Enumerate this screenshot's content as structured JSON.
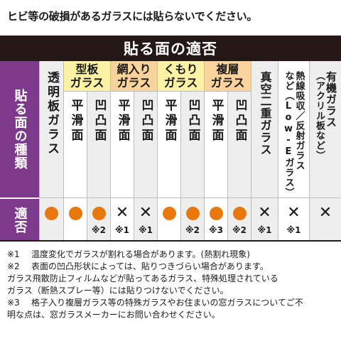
{
  "top_note": "ヒビ等の破損があるガラスには貼らないでください。",
  "table": {
    "title": "貼る面の適否",
    "row_header_types": "貼る面の種類",
    "row_header_suitability": "適否",
    "columns": [
      {
        "group": "",
        "label": "透明板ガラス",
        "mark": "circle",
        "note": ""
      },
      {
        "group": "型板ガラス",
        "label": "平滑面",
        "mark": "circle",
        "note": ""
      },
      {
        "group": "型板ガラス",
        "label": "凹凸面",
        "mark": "circle",
        "note": "※2"
      },
      {
        "group": "網入りガラス",
        "label": "平滑面",
        "mark": "cross",
        "note": "※1"
      },
      {
        "group": "網入りガラス",
        "label": "凹凸面",
        "mark": "cross",
        "note": "※1"
      },
      {
        "group": "くもりガラス",
        "label": "平滑面",
        "mark": "circle",
        "note": ""
      },
      {
        "group": "くもりガラス",
        "label": "凹凸面",
        "mark": "circle",
        "note": "※2"
      },
      {
        "group": "複層ガラス",
        "label": "平滑面",
        "mark": "circle",
        "note": "※3"
      },
      {
        "group": "複層ガラス",
        "label": "凹凸面",
        "mark": "circle",
        "note": "※2"
      },
      {
        "group": "",
        "label": "真空二重ガラス",
        "mark": "cross",
        "note": "※1"
      },
      {
        "group": "",
        "label": "熱線吸収／反射ガラスなど（Low-Eガラス）",
        "mark": "cross",
        "note": "※1"
      },
      {
        "group": "",
        "label": "有機ガラス（アクリル板など）",
        "mark": "cross",
        "note": ""
      }
    ],
    "groups": {
      "g1": "型板\nガラス",
      "g2": "網入り\nガラス",
      "g3": "くもり\nガラス",
      "g4": "複層\nガラス"
    },
    "col_labels": {
      "c0": "透明板ガラス",
      "sub_flat": "平滑面",
      "sub_bumpy": "凹凸面",
      "c9": "真空二重ガラス",
      "c10a": "熱線吸収／反射ガラス",
      "c10b": "など（Low-Eガラス）",
      "c11a": "有機ガラス",
      "c11b": "（アクリル板など）"
    },
    "mark_color": "#e8770e",
    "header_purple": "#7d3a8c"
  },
  "footnotes": [
    {
      "mark": "※1",
      "lines": [
        "温度変化でガラスが割れる場合があります。(熱割れ現象)"
      ]
    },
    {
      "mark": "※2",
      "lines": [
        "表面の凹凸形状によっては、貼りつきづらい場合があります。",
        "ガラス飛散防止フィルムなどが貼ってあるガラス、特殊処理されている",
        "ガラス（断熱スプレー等）には貼りつけないでください。"
      ]
    },
    {
      "mark": "※3",
      "lines": [
        "格子入り複層ガラス等の特殊ガラスやお住まいの窓ガラスについてご不",
        "明な点は、窓ガラスメーカーにお問い合わせください。"
      ]
    }
  ]
}
